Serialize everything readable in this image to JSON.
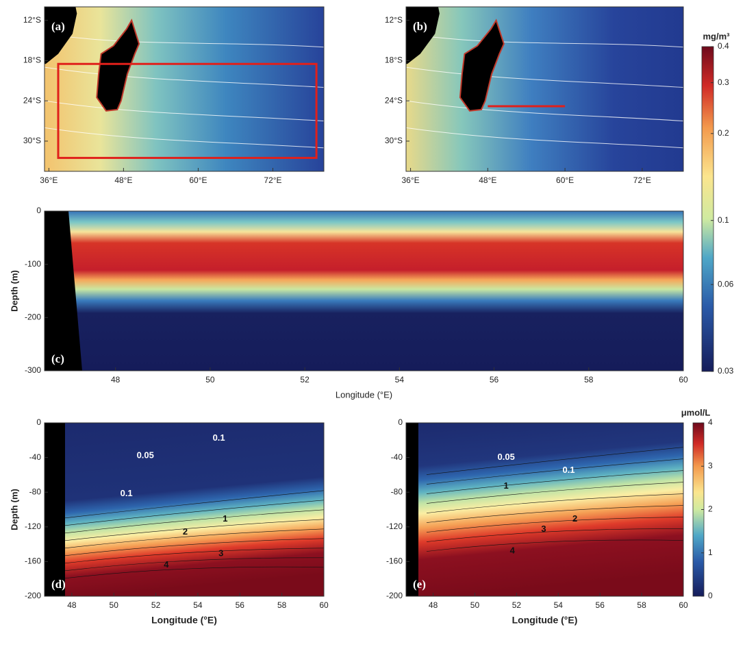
{
  "chart_data": [
    {
      "type": "map",
      "panel_label": "(a)",
      "xlim": [
        35.3,
        80.2
      ],
      "ylim": [
        -34.5,
        -10
      ],
      "xticks": [
        {
          "value": 36,
          "label": "36°E"
        },
        {
          "value": 48,
          "label": "48°E"
        },
        {
          "value": 60,
          "label": "60°E"
        },
        {
          "value": 72,
          "label": "72°E"
        }
      ],
      "yticks": [
        {
          "value": -12,
          "label": "12°S"
        },
        {
          "value": -18,
          "label": "18°S"
        },
        {
          "value": -24,
          "label": "24°S"
        },
        {
          "value": -30,
          "label": "30°S"
        }
      ]
    },
    {
      "type": "map",
      "panel_label": "(b)",
      "xlim": [
        35.3,
        78.4
      ],
      "ylim": [
        -34.5,
        -10
      ],
      "xticks": [
        {
          "value": 36,
          "label": "36°E"
        },
        {
          "value": 48,
          "label": "48°E"
        },
        {
          "value": 60,
          "label": "60°E"
        },
        {
          "value": 72,
          "label": "72°E"
        }
      ],
      "yticks": [
        {
          "value": -12,
          "label": "12°S"
        },
        {
          "value": -18,
          "label": "18°S"
        },
        {
          "value": -24,
          "label": "24°S"
        },
        {
          "value": -30,
          "label": "30°S"
        }
      ]
    },
    {
      "type": "colorbar",
      "title": "mg/m³",
      "log_scale": true,
      "ylim": [
        0.03,
        0.4
      ],
      "yticks": [
        0.03,
        0.06,
        0.1,
        0.2,
        0.3,
        0.4
      ]
    },
    {
      "type": "heatmap",
      "panel_label": "(c)",
      "xlabel": "Longitude (°E)",
      "ylabel": "Depth (m)",
      "xlim": [
        46.5,
        60
      ],
      "ylim": [
        -300,
        0
      ],
      "xticks": [
        48,
        50,
        52,
        54,
        56,
        58,
        60
      ],
      "yticks": [
        -300,
        -200,
        -100,
        0
      ]
    },
    {
      "type": "contour",
      "panel_label": "(d)",
      "xlabel": "Longitude (°E)",
      "ylabel": "Depth (m)",
      "xlim": [
        46.7,
        60
      ],
      "ylim": [
        -200,
        0
      ],
      "xticks": [
        48,
        50,
        52,
        54,
        56,
        58,
        60
      ],
      "yticks": [
        -200,
        -160,
        -120,
        -80,
        -40,
        0
      ],
      "contour_labels": [
        0.1,
        0.05,
        0.1,
        1,
        2,
        3,
        4
      ]
    },
    {
      "type": "contour",
      "panel_label": "(e)",
      "xlabel": "Longitude (°E)",
      "xlim": [
        46.7,
        60
      ],
      "ylim": [
        -200,
        0
      ],
      "xticks": [
        48,
        50,
        52,
        54,
        56,
        58,
        60
      ],
      "yticks": [
        -200,
        -160,
        -120,
        -80,
        -40,
        0
      ],
      "contour_labels": [
        0.05,
        0.1,
        1,
        2,
        3,
        4
      ]
    },
    {
      "type": "colorbar",
      "title": "μmol/L",
      "ylim": [
        0,
        4
      ],
      "yticks": [
        0,
        1,
        2,
        3,
        4
      ]
    }
  ]
}
